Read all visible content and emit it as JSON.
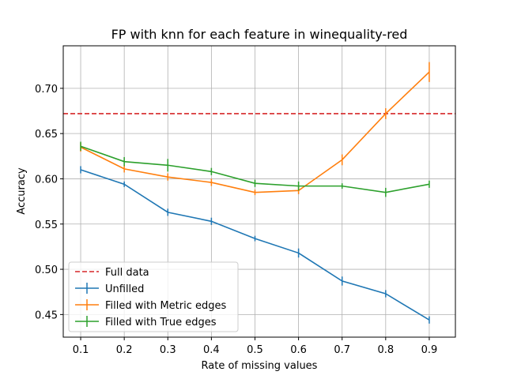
{
  "chart_data": {
    "type": "line",
    "title": "FP with knn for each feature in winequality-red",
    "xlabel": "Rate of missing values",
    "ylabel": "Accuracy",
    "x": [
      0.1,
      0.2,
      0.3,
      0.4,
      0.5,
      0.6,
      0.7,
      0.8,
      0.9
    ],
    "x_ticks": [
      "0.1",
      "0.2",
      "0.3",
      "0.4",
      "0.5",
      "0.6",
      "0.7",
      "0.8",
      "0.9"
    ],
    "y_ticks": [
      "0.45",
      "0.50",
      "0.55",
      "0.60",
      "0.65",
      "0.70"
    ],
    "xlim": [
      0.06,
      0.96
    ],
    "ylim": [
      0.425,
      0.747
    ],
    "grid": true,
    "legend_position": "lower-left",
    "reference_line": {
      "name": "Full data",
      "value": 0.672,
      "color": "#d62728",
      "style": "dashed"
    },
    "series": [
      {
        "name": "Unfilled",
        "color": "#1f77b4",
        "values": [
          0.61,
          0.594,
          0.563,
          0.553,
          0.534,
          0.518,
          0.487,
          0.473,
          0.444
        ],
        "errors": [
          0.004,
          0.003,
          0.004,
          0.004,
          0.003,
          0.005,
          0.005,
          0.004,
          0.004
        ]
      },
      {
        "name": "Filled with Metric edges",
        "color": "#ff7f0e",
        "values": [
          0.635,
          0.611,
          0.602,
          0.596,
          0.585,
          0.587,
          0.621,
          0.672,
          0.718
        ],
        "errors": [
          0.005,
          0.004,
          0.004,
          0.004,
          0.003,
          0.004,
          0.006,
          0.006,
          0.011
        ]
      },
      {
        "name": "Filled with True edges",
        "color": "#2ca02c",
        "values": [
          0.636,
          0.619,
          0.615,
          0.608,
          0.595,
          0.592,
          0.592,
          0.585,
          0.594
        ],
        "errors": [
          0.005,
          0.005,
          0.007,
          0.004,
          0.004,
          0.005,
          0.003,
          0.005,
          0.004
        ]
      }
    ]
  }
}
